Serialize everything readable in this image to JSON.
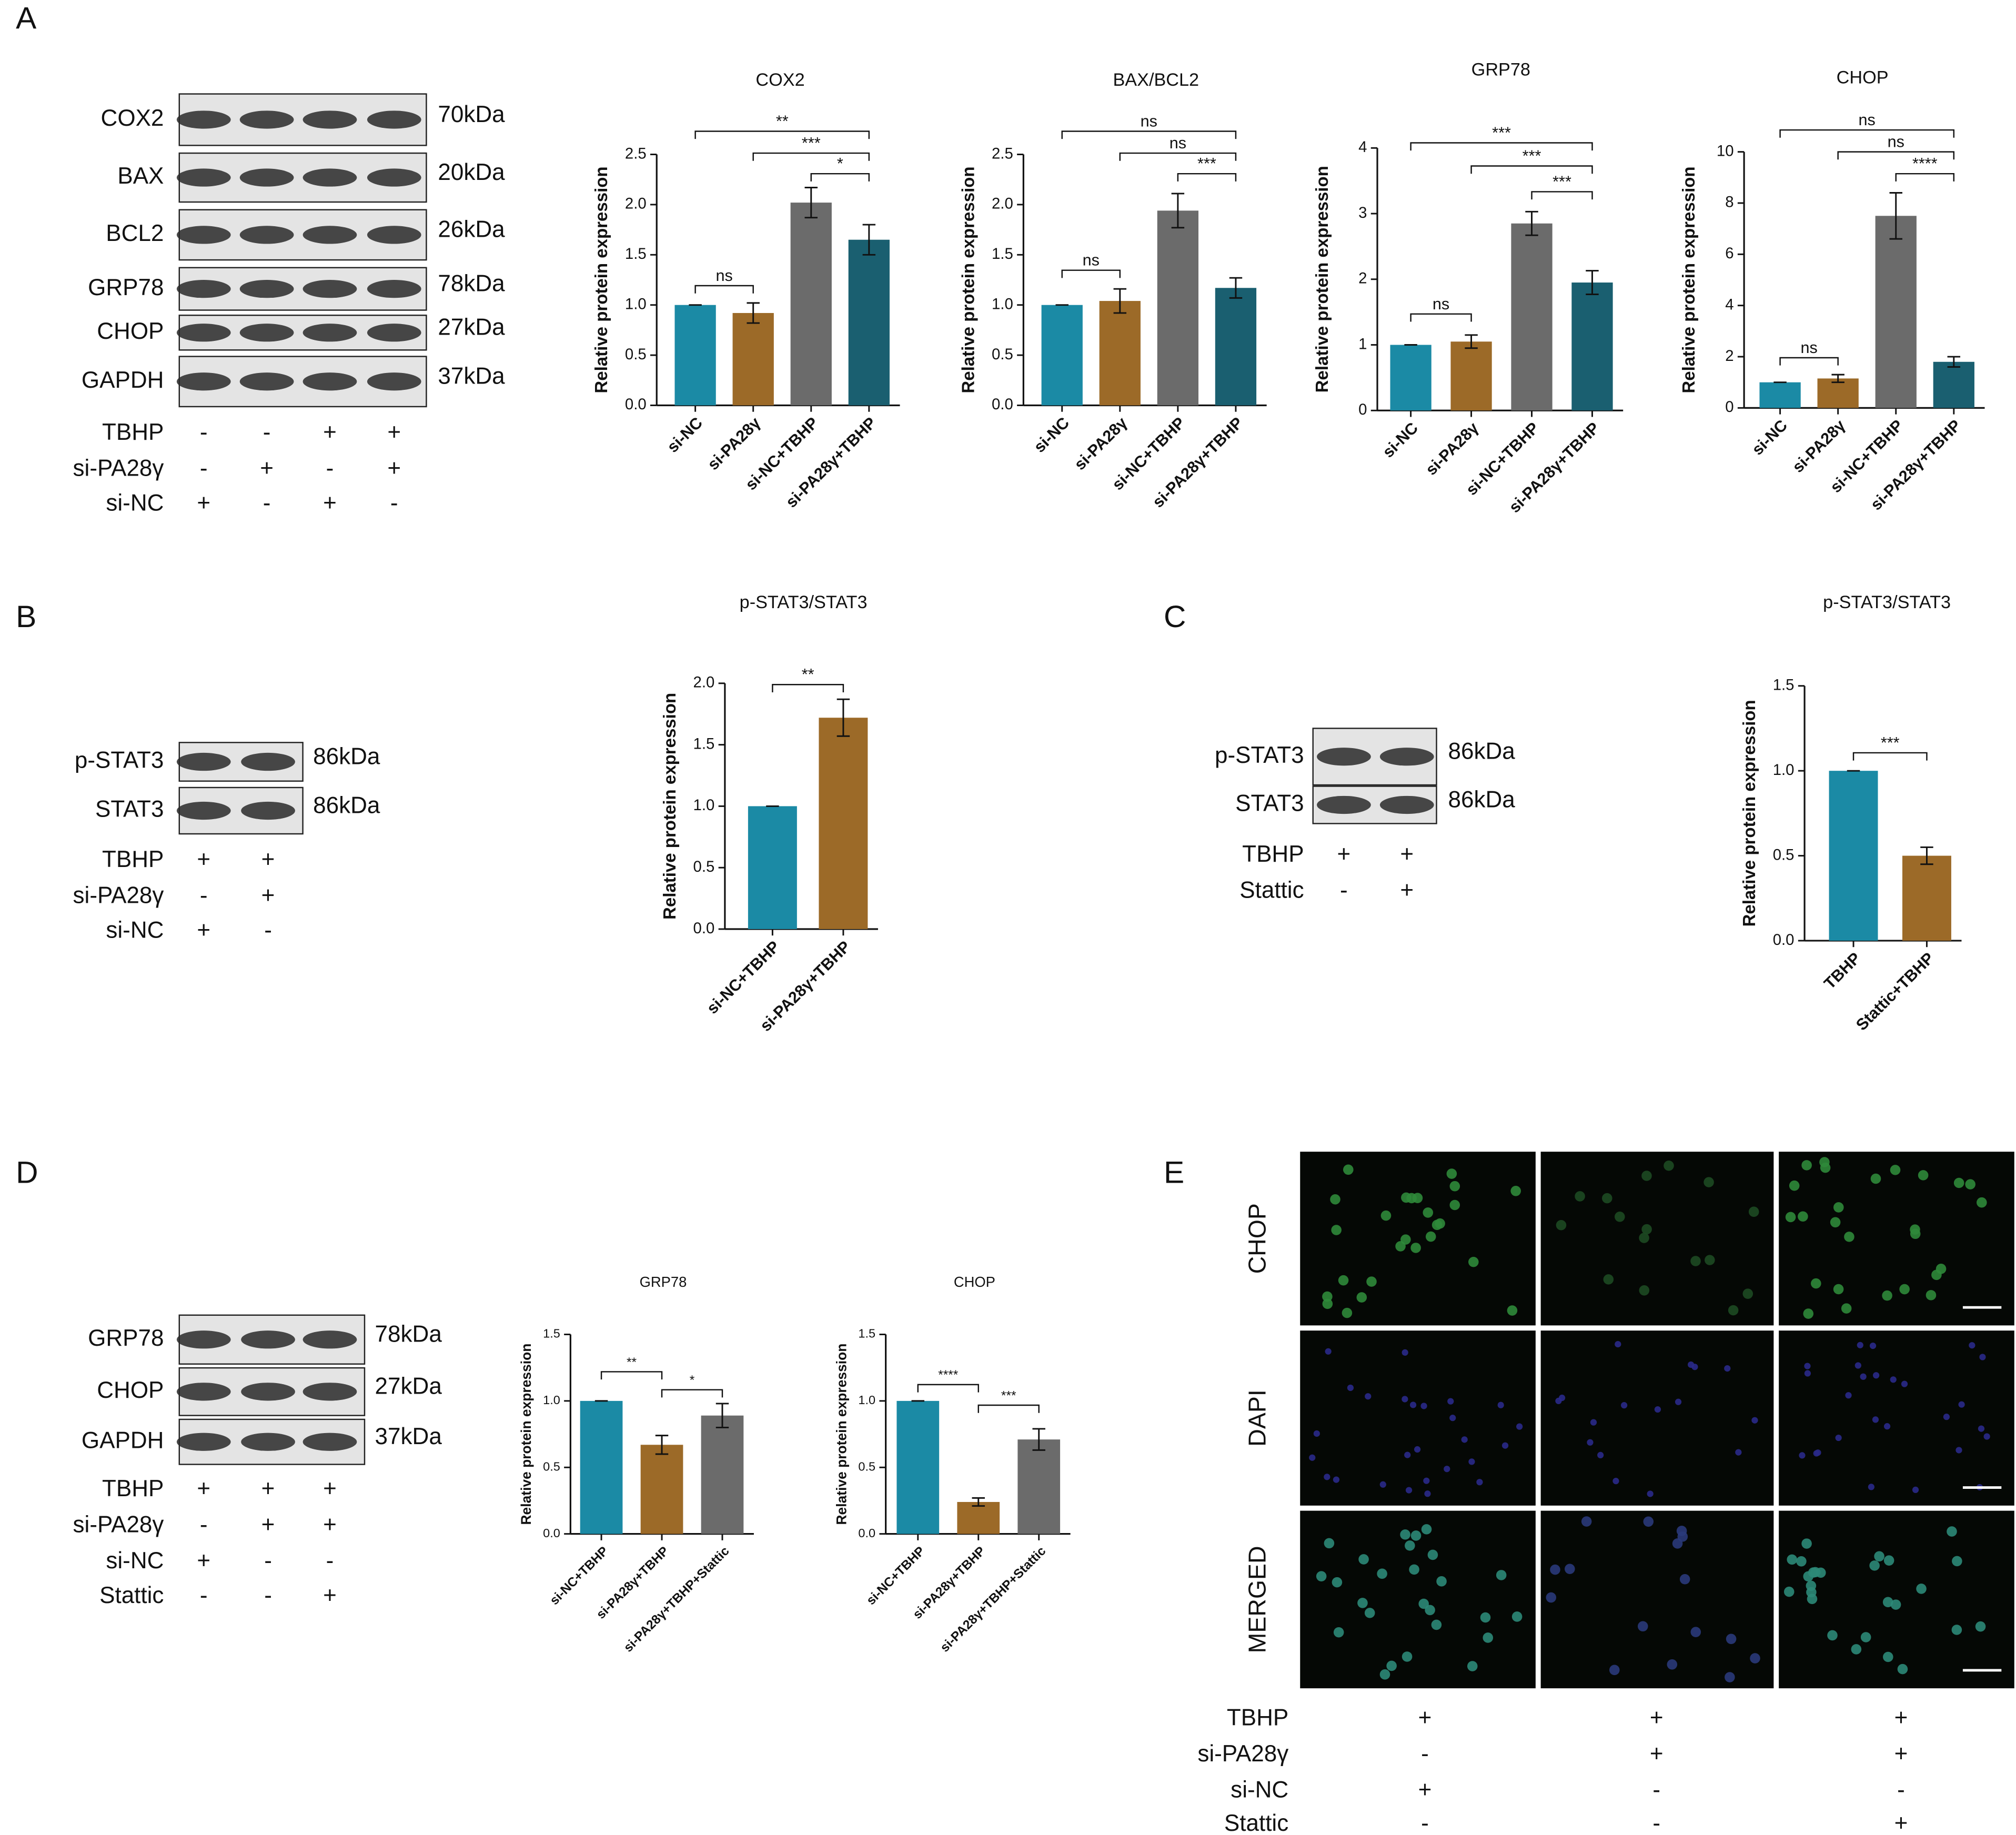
{
  "panel_letters": [
    "A",
    "B",
    "C",
    "D",
    "E"
  ],
  "blots": [
    {
      "rows": [
        {
          "protein": "COX2",
          "size": "70kDa"
        },
        {
          "protein": "BAX",
          "size": "20kDa"
        },
        {
          "protein": "BCL2",
          "size": "26kDa"
        },
        {
          "protein": "GRP78",
          "size": "78kDa"
        },
        {
          "protein": "CHOP",
          "size": "27kDa"
        },
        {
          "protein": "GAPDH",
          "size": "37kDa"
        }
      ],
      "conditions": [
        {
          "name": "TBHP",
          "signs": [
            "-",
            "-",
            "+",
            "+"
          ]
        },
        {
          "name": "si-PA28γ",
          "signs": [
            "-",
            "+",
            "-",
            "+"
          ]
        },
        {
          "name": "si-NC",
          "signs": [
            "+",
            "-",
            "+",
            "-"
          ]
        }
      ]
    },
    {
      "rows": [
        {
          "protein": "p-STAT3",
          "size": "86kDa"
        },
        {
          "protein": "STAT3",
          "size": "86kDa"
        }
      ],
      "conditions": [
        {
          "name": "TBHP",
          "signs": [
            "+",
            "+"
          ]
        },
        {
          "name": "si-PA28γ",
          "signs": [
            "-",
            "+"
          ]
        },
        {
          "name": "si-NC",
          "signs": [
            "+",
            "-"
          ]
        }
      ]
    },
    {
      "rows": [
        {
          "protein": "p-STAT3",
          "size": "86kDa"
        },
        {
          "protein": "STAT3",
          "size": "86kDa"
        }
      ],
      "conditions": [
        {
          "name": "TBHP",
          "signs": [
            "+",
            "+"
          ]
        },
        {
          "name": "Stattic",
          "signs": [
            "-",
            "+"
          ]
        }
      ]
    },
    {
      "rows": [
        {
          "protein": "GRP78",
          "size": "78kDa"
        },
        {
          "protein": "CHOP",
          "size": "27kDa"
        },
        {
          "protein": "GAPDH",
          "size": "37kDa"
        }
      ],
      "conditions": [
        {
          "name": "TBHP",
          "signs": [
            "+",
            "+",
            "+"
          ]
        },
        {
          "name": "si-PA28γ",
          "signs": [
            "-",
            "+",
            "+"
          ]
        },
        {
          "name": "si-NC",
          "signs": [
            "+",
            "-",
            "-"
          ]
        },
        {
          "name": "Stattic",
          "signs": [
            "-",
            "-",
            "+"
          ]
        }
      ]
    }
  ],
  "chart_data": [
    {
      "type": "bar",
      "title": "COX2",
      "ylabel": "Relative protein expression",
      "categories": [
        "si-NC",
        "si-PA28γ",
        "si-NC+TBHP",
        "si-PA28γ+TBHP"
      ],
      "values": [
        1.0,
        0.92,
        2.02,
        1.65
      ],
      "errors": [
        0,
        0.1,
        0.15,
        0.15
      ],
      "colors": [
        "#1b8aa5",
        "#9c6a28",
        "#6b6b6b",
        "#1a5f70"
      ],
      "ylim": [
        0,
        2.5
      ],
      "yticks": [
        {
          "value": 0,
          "label": "0.0"
        },
        0.5,
        {
          "value": 1,
          "label": "1.0"
        },
        1.5,
        {
          "value": 2,
          "label": "2.0"
        },
        2.5
      ],
      "significance": [
        {
          "pair": [
            0,
            1
          ],
          "label": "ns"
        },
        {
          "pair": [
            0,
            3
          ],
          "label": "**"
        },
        {
          "pair": [
            1,
            3
          ],
          "label": "***"
        },
        {
          "pair": [
            2,
            3
          ],
          "label": "*"
        }
      ]
    },
    {
      "type": "bar",
      "title": "BAX/BCL2",
      "ylabel": "Relative protein expression",
      "categories": [
        "si-NC",
        "si-PA28γ",
        "si-NC+TBHP",
        "si-PA28γ+TBHP"
      ],
      "values": [
        1.0,
        1.04,
        1.94,
        1.17
      ],
      "errors": [
        0,
        0.12,
        0.17,
        0.1
      ],
      "colors": [
        "#1b8aa5",
        "#9c6a28",
        "#6b6b6b",
        "#1a5f70"
      ],
      "ylim": [
        0,
        2.5
      ],
      "yticks": [
        {
          "value": 0,
          "label": "0.0"
        },
        0.5,
        {
          "value": 1,
          "label": "1.0"
        },
        1.5,
        {
          "value": 2,
          "label": "2.0"
        },
        2.5
      ],
      "significance": [
        {
          "pair": [
            0,
            1
          ],
          "label": "ns"
        },
        {
          "pair": [
            0,
            3
          ],
          "label": "ns"
        },
        {
          "pair": [
            1,
            3
          ],
          "label": "ns"
        },
        {
          "pair": [
            2,
            3
          ],
          "label": "***"
        }
      ]
    },
    {
      "type": "bar",
      "title": "GRP78",
      "ylabel": "Relative protein expression",
      "categories": [
        "si-NC",
        "si-PA28γ",
        "si-NC+TBHP",
        "si-PA28γ+TBHP"
      ],
      "values": [
        1.0,
        1.05,
        2.85,
        1.95
      ],
      "errors": [
        0,
        0.1,
        0.18,
        0.18
      ],
      "colors": [
        "#1b8aa5",
        "#9c6a28",
        "#6b6b6b",
        "#1a5f70"
      ],
      "ylim": [
        0,
        4
      ],
      "yticks": [
        0,
        1,
        2,
        3,
        4
      ],
      "significance": [
        {
          "pair": [
            0,
            1
          ],
          "label": "ns"
        },
        {
          "pair": [
            0,
            3
          ],
          "label": "***"
        },
        {
          "pair": [
            1,
            3
          ],
          "label": "***"
        },
        {
          "pair": [
            2,
            3
          ],
          "label": "***"
        }
      ]
    },
    {
      "type": "bar",
      "title": "CHOP",
      "ylabel": "Relative protein expression",
      "categories": [
        "si-NC",
        "si-PA28γ",
        "si-NC+TBHP",
        "si-PA28γ+TBHP"
      ],
      "values": [
        1.0,
        1.15,
        7.5,
        1.8
      ],
      "errors": [
        0,
        0.15,
        0.9,
        0.2
      ],
      "colors": [
        "#1b8aa5",
        "#9c6a28",
        "#6b6b6b",
        "#1a5f70"
      ],
      "ylim": [
        0,
        10
      ],
      "yticks": [
        0,
        2,
        4,
        6,
        8,
        10
      ],
      "significance": [
        {
          "pair": [
            0,
            1
          ],
          "label": "ns"
        },
        {
          "pair": [
            0,
            3
          ],
          "label": "ns"
        },
        {
          "pair": [
            1,
            3
          ],
          "label": "ns"
        },
        {
          "pair": [
            2,
            3
          ],
          "label": "****"
        }
      ]
    },
    {
      "type": "bar",
      "title": "p-STAT3/STAT3",
      "ylabel": "Relative protein expression",
      "categories": [
        "si-NC+TBHP",
        "si-PA28γ+TBHP"
      ],
      "values": [
        1.0,
        1.72
      ],
      "errors": [
        0,
        0.15
      ],
      "colors": [
        "#1b8aa5",
        "#9c6a28"
      ],
      "ylim": [
        0,
        2
      ],
      "yticks": [
        {
          "value": 0,
          "label": "0.0"
        },
        0.5,
        {
          "value": 1,
          "label": "1.0"
        },
        1.5,
        {
          "value": 2,
          "label": "2.0"
        }
      ],
      "significance": [
        {
          "pair": [
            0,
            1
          ],
          "label": "**"
        }
      ]
    },
    {
      "type": "bar",
      "title": "p-STAT3/STAT3",
      "ylabel": "Relative protein expression",
      "categories": [
        "TBHP",
        "Stattic+TBHP"
      ],
      "values": [
        1.0,
        0.5
      ],
      "errors": [
        0,
        0.05
      ],
      "colors": [
        "#1b8aa5",
        "#9c6a28"
      ],
      "ylim": [
        0,
        1.5
      ],
      "yticks": [
        {
          "value": 0,
          "label": "0.0"
        },
        0.5,
        {
          "value": 1,
          "label": "1.0"
        },
        1.5
      ],
      "significance": [
        {
          "pair": [
            0,
            1
          ],
          "label": "***"
        }
      ]
    },
    {
      "type": "bar",
      "title": "GRP78",
      "ylabel": "Relative protein expression",
      "categories": [
        "si-NC+TBHP",
        "si-PA28γ+TBHP",
        "si-PA28γ+TBHP+Stattic"
      ],
      "values": [
        1.0,
        0.67,
        0.89
      ],
      "errors": [
        0,
        0.07,
        0.09
      ],
      "colors": [
        "#1b8aa5",
        "#9c6a28",
        "#6b6b6b"
      ],
      "ylim": [
        0,
        1.5
      ],
      "yticks": [
        {
          "value": 0,
          "label": "0.0"
        },
        0.5,
        {
          "value": 1,
          "label": "1.0"
        },
        1.5
      ],
      "significance": [
        {
          "pair": [
            0,
            1
          ],
          "label": "**"
        },
        {
          "pair": [
            1,
            2
          ],
          "label": "*"
        }
      ]
    },
    {
      "type": "bar",
      "title": "CHOP",
      "ylabel": "Relative protein expression",
      "categories": [
        "si-NC+TBHP",
        "si-PA28γ+TBHP",
        "si-PA28γ+TBHP+Stattic"
      ],
      "values": [
        1.0,
        0.24,
        0.71
      ],
      "errors": [
        0,
        0.03,
        0.08
      ],
      "colors": [
        "#1b8aa5",
        "#9c6a28",
        "#6b6b6b"
      ],
      "ylim": [
        0,
        1.5
      ],
      "yticks": [
        {
          "value": 0,
          "label": "0.0"
        },
        0.5,
        {
          "value": 1,
          "label": "1.0"
        },
        1.5
      ],
      "significance": [
        {
          "pair": [
            0,
            1
          ],
          "label": "****"
        },
        {
          "pair": [
            1,
            2
          ],
          "label": "***"
        }
      ]
    }
  ],
  "micrograph": {
    "rows": [
      "CHOP",
      "DAPI",
      "MERGED"
    ],
    "conditions": [
      {
        "name": "TBHP",
        "signs": [
          "+",
          "+",
          "+"
        ]
      },
      {
        "name": "si-PA28γ",
        "signs": [
          "-",
          "+",
          "+"
        ]
      },
      {
        "name": "si-NC",
        "signs": [
          "+",
          "-",
          "-"
        ]
      },
      {
        "name": "Stattic",
        "signs": [
          "-",
          "-",
          "+"
        ]
      }
    ]
  }
}
